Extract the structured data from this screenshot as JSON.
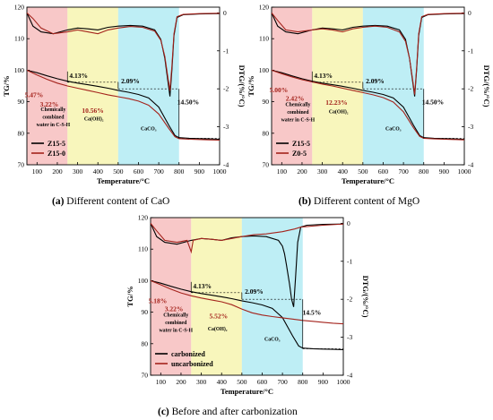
{
  "colors": {
    "pink": "#f6b6b6",
    "yellow": "#f6f3a6",
    "cyan": "#a8e8f2",
    "black_series": "#000000",
    "red_series": "#a4231c"
  },
  "captions": [
    {
      "letter": "(a)",
      "text": "Different content of CaO"
    },
    {
      "letter": "(b)",
      "text": "Different content of MgO"
    },
    {
      "letter": "(c)",
      "text": "Before and after carbonization"
    }
  ],
  "chart_data": [
    {
      "panel": "a",
      "type": "line",
      "xlabel": "Temperature/°C",
      "ylabel": "TG/%",
      "y2label": "DTG/(%/°C)",
      "xlim": [
        50,
        1000
      ],
      "ylim": [
        70,
        120
      ],
      "y2lim": [
        -4,
        0.15
      ],
      "xticks": [
        100,
        200,
        300,
        400,
        500,
        600,
        700,
        800,
        900,
        1000
      ],
      "yticks": [
        70,
        80,
        90,
        100,
        110,
        120
      ],
      "y2ticks": [
        0,
        -1,
        -2,
        -3,
        -4
      ],
      "regions": [
        {
          "from": 50,
          "to": 250,
          "color": "pink"
        },
        {
          "from": 250,
          "to": 500,
          "color": "yellow"
        },
        {
          "from": 500,
          "to": 800,
          "color": "cyan"
        }
      ],
      "series": [
        {
          "name": "Z15-5",
          "color": "black_series",
          "axis": "left",
          "x": [
            50,
            100,
            150,
            200,
            250,
            300,
            350,
            400,
            450,
            500,
            550,
            600,
            650,
            700,
            750,
            780,
            800,
            850,
            900,
            950,
            1000
          ],
          "y": [
            100,
            99.2,
            98.2,
            97.3,
            96.5,
            95.9,
            95.4,
            94.9,
            94.3,
            93.6,
            93.0,
            92.3,
            91.2,
            88.3,
            82.5,
            79.3,
            78.6,
            78.4,
            78.3,
            78.2,
            78.1
          ]
        },
        {
          "name": "Z15-0",
          "color": "red_series",
          "axis": "left",
          "x": [
            50,
            100,
            150,
            200,
            250,
            300,
            350,
            400,
            450,
            500,
            550,
            600,
            650,
            700,
            750,
            780,
            800,
            850,
            900,
            950,
            1000
          ],
          "y": [
            100,
            98.5,
            97.1,
            95.9,
            95.0,
            94.3,
            93.6,
            92.9,
            92.2,
            91.6,
            91.0,
            90.2,
            88.9,
            86.1,
            81.5,
            78.9,
            78.3,
            78.1,
            78.0,
            77.9,
            77.8
          ]
        },
        {
          "name": "DTG Z15-5",
          "color": "black_series",
          "axis": "right",
          "x": [
            50,
            80,
            120,
            180,
            250,
            300,
            350,
            400,
            450,
            500,
            560,
            620,
            680,
            710,
            730,
            745,
            755,
            765,
            775,
            790,
            820,
            900,
            1000
          ],
          "y": [
            0,
            -0.35,
            -0.5,
            -0.55,
            -0.45,
            -0.4,
            -0.42,
            -0.45,
            -0.38,
            -0.35,
            -0.33,
            -0.35,
            -0.45,
            -0.7,
            -1.2,
            -1.8,
            -2.2,
            -1.5,
            -0.6,
            -0.12,
            -0.05,
            -0.03,
            -0.02
          ]
        },
        {
          "name": "DTG Z15-0",
          "color": "red_series",
          "axis": "right",
          "x": [
            50,
            80,
            120,
            180,
            250,
            300,
            350,
            400,
            450,
            500,
            560,
            620,
            680,
            710,
            730,
            745,
            755,
            765,
            775,
            790,
            820,
            900,
            1000
          ],
          "y": [
            0,
            -0.15,
            -0.4,
            -0.55,
            -0.5,
            -0.45,
            -0.5,
            -0.55,
            -0.45,
            -0.4,
            -0.36,
            -0.38,
            -0.48,
            -0.72,
            -1.15,
            -1.7,
            -2.05,
            -1.4,
            -0.55,
            -0.1,
            -0.04,
            -0.02,
            -0.01
          ]
        }
      ],
      "annotations": [
        {
          "text": "4.13%",
          "color": "black",
          "x": 305,
          "y": 97.5
        },
        {
          "text": "2.09%",
          "color": "black",
          "x": 560,
          "y": 95.8
        },
        {
          "text": "14.50%",
          "color": "black",
          "x": 845,
          "y": 89.2
        },
        {
          "text": "5.47%",
          "color": "red",
          "x": 85,
          "y": 91.5
        },
        {
          "text": "3.22%",
          "color": "red",
          "x": 160,
          "y": 88.5
        },
        {
          "text": "10.56%",
          "color": "red",
          "x": 375,
          "y": 86.5
        },
        {
          "text": "Chemically",
          "color": "black",
          "x": 180,
          "y": 87.0
        },
        {
          "text": "combined",
          "color": "black",
          "x": 180,
          "y": 84.6
        },
        {
          "text": "water in C-S-H",
          "color": "black",
          "x": 180,
          "y": 82.2
        },
        {
          "text": "Ca(OH)₂",
          "color": "black",
          "x": 380,
          "y": 84.0
        },
        {
          "text": "CaCO₃",
          "color": "black",
          "x": 650,
          "y": 81.0
        }
      ]
    },
    {
      "panel": "b",
      "type": "line",
      "xlabel": "Temperature/°C",
      "ylabel": "TG/%",
      "y2label": "DTG/(%/°C)",
      "xlim": [
        50,
        1000
      ],
      "ylim": [
        70,
        120
      ],
      "y2lim": [
        -4,
        0.15
      ],
      "xticks": [
        100,
        200,
        300,
        400,
        500,
        600,
        700,
        800,
        900,
        1000
      ],
      "yticks": [
        70,
        80,
        90,
        100,
        110,
        120
      ],
      "y2ticks": [
        0,
        -1,
        -2,
        -3,
        -4
      ],
      "regions": [
        {
          "from": 50,
          "to": 250,
          "color": "pink"
        },
        {
          "from": 250,
          "to": 500,
          "color": "yellow"
        },
        {
          "from": 500,
          "to": 800,
          "color": "cyan"
        }
      ],
      "series": [
        {
          "name": "Z15-5",
          "color": "black_series",
          "axis": "left",
          "x": [
            50,
            100,
            150,
            200,
            250,
            300,
            350,
            400,
            450,
            500,
            550,
            600,
            650,
            700,
            750,
            780,
            800,
            850,
            900,
            950,
            1000
          ],
          "y": [
            100,
            99.2,
            98.2,
            97.3,
            96.5,
            95.9,
            95.4,
            94.9,
            94.3,
            93.6,
            93.0,
            92.3,
            91.2,
            88.3,
            82.5,
            79.3,
            78.6,
            78.4,
            78.3,
            78.2,
            78.1
          ]
        },
        {
          "name": "Z0-5",
          "color": "red_series",
          "axis": "left",
          "x": [
            50,
            100,
            150,
            200,
            250,
            300,
            350,
            400,
            450,
            500,
            550,
            600,
            650,
            700,
            750,
            780,
            800,
            850,
            900,
            950,
            1000
          ],
          "y": [
            100,
            98.9,
            97.9,
            97.0,
            96.3,
            95.6,
            95.0,
            94.3,
            93.6,
            92.9,
            92.2,
            91.3,
            89.9,
            86.8,
            81.7,
            79.0,
            78.4,
            78.2,
            78.1,
            78.0,
            77.9
          ]
        },
        {
          "name": "DTG Z15-5",
          "color": "black_series",
          "axis": "right",
          "x": [
            50,
            80,
            120,
            180,
            250,
            300,
            350,
            400,
            450,
            500,
            560,
            620,
            680,
            710,
            730,
            745,
            755,
            765,
            775,
            790,
            820,
            900,
            1000
          ],
          "y": [
            0,
            -0.35,
            -0.5,
            -0.55,
            -0.45,
            -0.4,
            -0.42,
            -0.45,
            -0.38,
            -0.35,
            -0.33,
            -0.35,
            -0.45,
            -0.7,
            -1.2,
            -1.8,
            -2.2,
            -1.5,
            -0.6,
            -0.12,
            -0.05,
            -0.03,
            -0.02
          ]
        },
        {
          "name": "DTG Z0-5",
          "color": "red_series",
          "axis": "right",
          "x": [
            50,
            80,
            120,
            180,
            250,
            300,
            350,
            400,
            450,
            500,
            560,
            620,
            680,
            710,
            730,
            745,
            755,
            765,
            775,
            790,
            820,
            900,
            1000
          ],
          "y": [
            0,
            -0.2,
            -0.45,
            -0.5,
            -0.45,
            -0.42,
            -0.45,
            -0.5,
            -0.42,
            -0.38,
            -0.35,
            -0.38,
            -0.5,
            -0.75,
            -1.2,
            -1.75,
            -2.15,
            -1.45,
            -0.55,
            -0.1,
            -0.04,
            -0.02,
            -0.01
          ]
        }
      ],
      "annotations": [
        {
          "text": "4.13%",
          "color": "black",
          "x": 305,
          "y": 97.5
        },
        {
          "text": "2.09%",
          "color": "black",
          "x": 560,
          "y": 95.8
        },
        {
          "text": "14.50%",
          "color": "black",
          "x": 845,
          "y": 89.2
        },
        {
          "text": "5.00%",
          "color": "red",
          "x": 85,
          "y": 93.0
        },
        {
          "text": "2.42%",
          "color": "red",
          "x": 165,
          "y": 90.3
        },
        {
          "text": "12.23%",
          "color": "red",
          "x": 370,
          "y": 89.0
        },
        {
          "text": "Chemically",
          "color": "black",
          "x": 180,
          "y": 88.6
        },
        {
          "text": "combined",
          "color": "black",
          "x": 180,
          "y": 86.2
        },
        {
          "text": "water in C-S-H",
          "color": "black",
          "x": 180,
          "y": 83.8
        },
        {
          "text": "Ca(OH)₂",
          "color": "black",
          "x": 380,
          "y": 86.3
        },
        {
          "text": "CaCO₃",
          "color": "black",
          "x": 650,
          "y": 81.0
        }
      ]
    },
    {
      "panel": "c",
      "type": "line",
      "xlabel": "Temperature/°C",
      "ylabel": "TG/%",
      "y2label": "DTG/(%/°C)",
      "xlim": [
        50,
        1000
      ],
      "ylim": [
        70,
        120
      ],
      "y2lim": [
        -4,
        0.15
      ],
      "xticks": [
        100,
        200,
        300,
        400,
        500,
        600,
        700,
        800,
        900,
        1000
      ],
      "yticks": [
        70,
        80,
        90,
        100,
        110,
        120
      ],
      "y2ticks": [
        0,
        -1,
        -2,
        -3,
        -4
      ],
      "regions": [
        {
          "from": 50,
          "to": 250,
          "color": "pink"
        },
        {
          "from": 250,
          "to": 500,
          "color": "yellow"
        },
        {
          "from": 500,
          "to": 800,
          "color": "cyan"
        }
      ],
      "series": [
        {
          "name": "carbonized",
          "color": "black_series",
          "axis": "left",
          "x": [
            50,
            100,
            150,
            200,
            250,
            300,
            350,
            400,
            450,
            500,
            550,
            600,
            650,
            700,
            750,
            780,
            800,
            850,
            900,
            950,
            1000
          ],
          "y": [
            100,
            99.2,
            98.2,
            97.3,
            96.5,
            95.9,
            95.4,
            94.9,
            94.3,
            93.6,
            93.0,
            92.3,
            91.2,
            88.3,
            82.5,
            79.3,
            78.6,
            78.4,
            78.3,
            78.2,
            78.1
          ]
        },
        {
          "name": "uncarbonized",
          "color": "red_series",
          "axis": "left",
          "x": [
            50,
            100,
            150,
            200,
            250,
            300,
            350,
            400,
            450,
            500,
            550,
            600,
            650,
            700,
            750,
            800,
            850,
            900,
            950,
            1000
          ],
          "y": [
            100,
            98.7,
            97.3,
            96.1,
            95.2,
            94.5,
            93.9,
            93.3,
            92.4,
            91.0,
            89.8,
            89.1,
            88.6,
            88.2,
            87.8,
            87.4,
            87.1,
            86.8,
            86.5,
            86.3
          ]
        },
        {
          "name": "DTG carbonized",
          "color": "black_series",
          "axis": "right",
          "x": [
            50,
            80,
            120,
            180,
            250,
            300,
            350,
            400,
            450,
            500,
            560,
            620,
            680,
            700,
            710,
            720,
            735,
            745,
            755,
            765,
            775,
            790,
            820,
            900,
            1000
          ],
          "y": [
            0,
            -0.35,
            -0.5,
            -0.55,
            -0.45,
            -0.4,
            -0.42,
            -0.45,
            -0.38,
            -0.35,
            -0.33,
            -0.35,
            -0.45,
            -0.6,
            -0.8,
            -1.1,
            -1.6,
            -2.0,
            -2.2,
            -1.4,
            -0.5,
            -0.1,
            -0.05,
            -0.03,
            -0.02
          ]
        },
        {
          "name": "DTG uncarbonized",
          "color": "red_series",
          "axis": "right",
          "x": [
            50,
            80,
            120,
            180,
            230,
            240,
            250,
            260,
            300,
            350,
            400,
            450,
            500,
            560,
            620,
            700,
            760,
            790,
            900,
            1000
          ],
          "y": [
            0,
            -0.2,
            -0.45,
            -0.5,
            -0.45,
            -0.6,
            -0.75,
            -0.45,
            -0.4,
            -0.42,
            -0.45,
            -0.4,
            -0.35,
            -0.3,
            -0.28,
            -0.22,
            -0.15,
            -0.1,
            -0.05,
            -0.02
          ]
        }
      ],
      "annotations": [
        {
          "text": "4.13%",
          "color": "black",
          "x": 305,
          "y": 97.5
        },
        {
          "text": "2.09%",
          "color": "black",
          "x": 560,
          "y": 95.8
        },
        {
          "text": "14.5%",
          "color": "black",
          "x": 845,
          "y": 89.2
        },
        {
          "text": "5.18%",
          "color": "red",
          "x": 85,
          "y": 92.8
        },
        {
          "text": "3.22%",
          "color": "red",
          "x": 165,
          "y": 90.3
        },
        {
          "text": "5.52%",
          "color": "red",
          "x": 385,
          "y": 88.0
        },
        {
          "text": "Chemically",
          "color": "black",
          "x": 175,
          "y": 88.6
        },
        {
          "text": "combined",
          "color": "black",
          "x": 175,
          "y": 86.2
        },
        {
          "text": "water in C-S-H",
          "color": "black",
          "x": 175,
          "y": 83.8
        },
        {
          "text": "Ca(OH)₂",
          "color": "black",
          "x": 380,
          "y": 84.2
        },
        {
          "text": "CaCO₃",
          "color": "black",
          "x": 650,
          "y": 81.0
        }
      ]
    }
  ]
}
